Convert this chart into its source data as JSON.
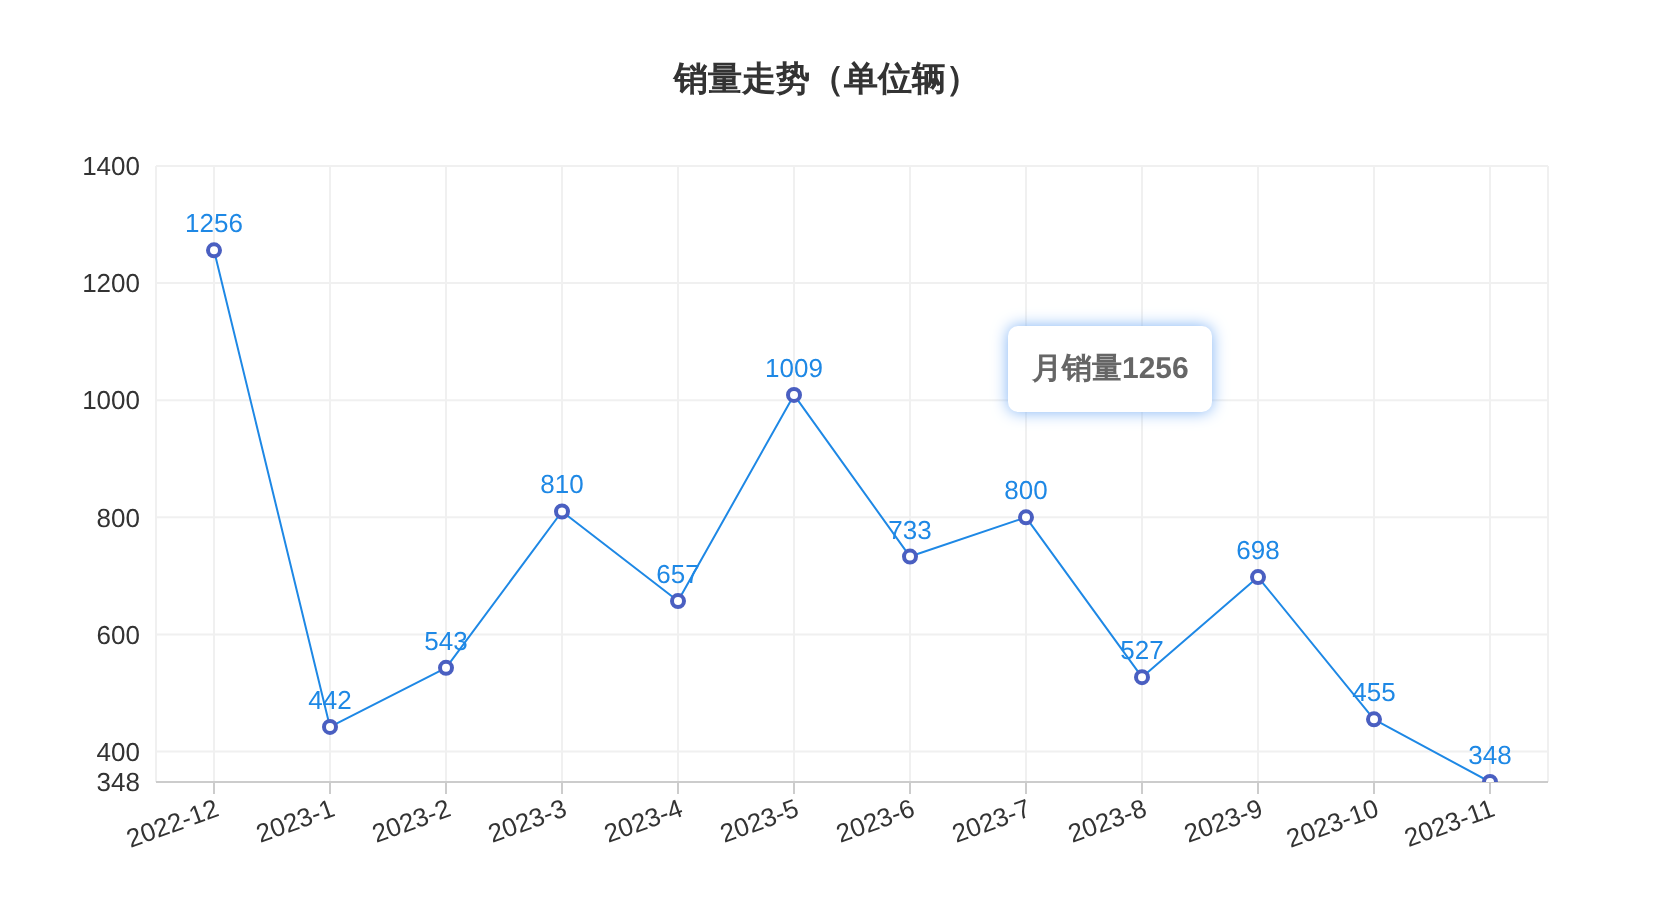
{
  "chart_data": {
    "type": "line",
    "title": "销量走势（单位辆）",
    "categories": [
      "2022-12",
      "2023-1",
      "2023-2",
      "2023-3",
      "2023-4",
      "2023-5",
      "2023-6",
      "2023-7",
      "2023-8",
      "2023-9",
      "2023-10",
      "2023-11"
    ],
    "series": [
      {
        "color": "#1e88e5",
        "values": [
          1256,
          442,
          543,
          810,
          657,
          1009,
          733,
          800,
          527,
          698,
          455,
          348
        ]
      }
    ],
    "ylim": [
      348,
      1400
    ],
    "yticks": [
      348,
      400,
      600,
      800,
      1000,
      1200,
      1400
    ],
    "grid": true,
    "marker": "circle",
    "data_labels": true,
    "annotations": [
      "月销量1256"
    ]
  }
}
